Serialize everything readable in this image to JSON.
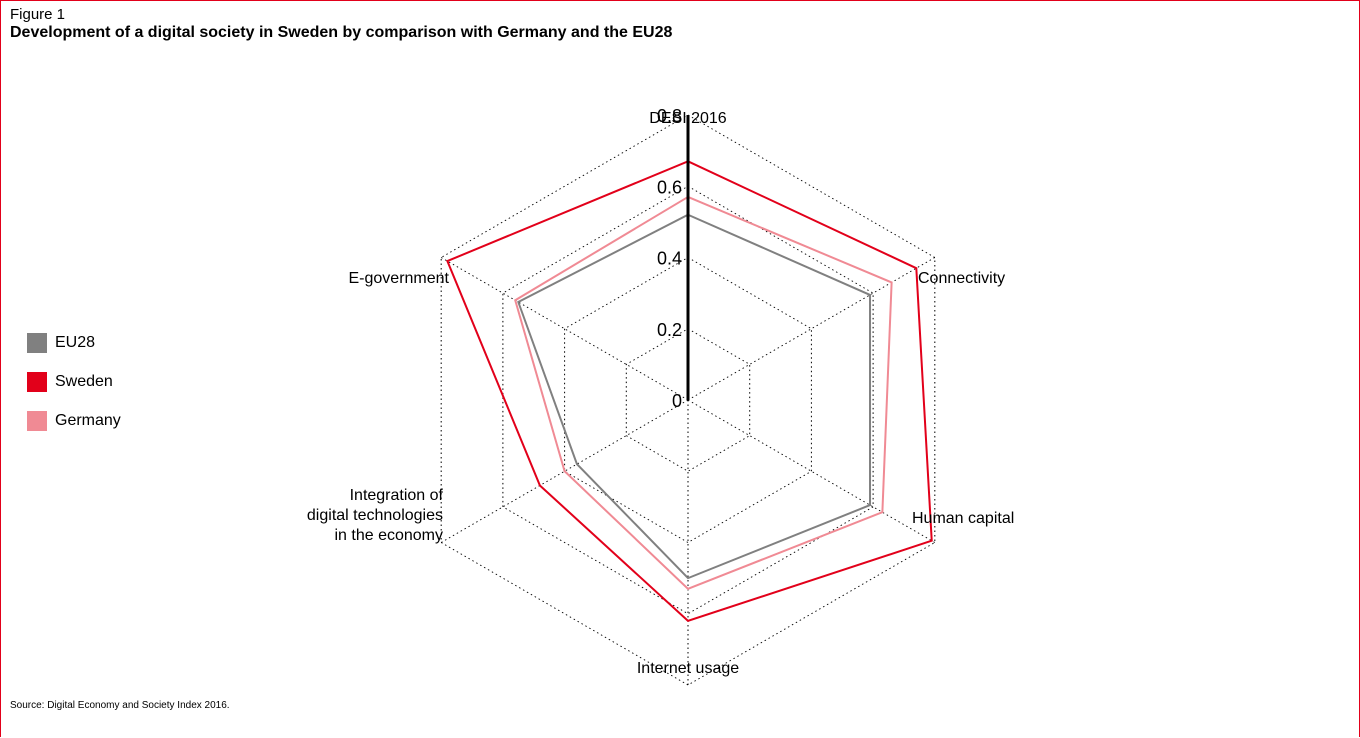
{
  "figure_label": "Figure 1",
  "title": "Development of a digital society in Sweden by comparison with Germany and the EU28",
  "source": "Source: Digital Economy and Society Index 2016.",
  "legend_position": "left",
  "chart_data": {
    "type": "radar",
    "title": "Development of a digital society in Sweden by comparison with Germany and the EU28",
    "subtitle": "DESI 2016",
    "categories": [
      "Connectivity",
      "Human capital",
      "Internet usage",
      "Integration of digital technologies in the economy",
      "E-government"
    ],
    "axis_label_lines": [
      [
        "Connectivity"
      ],
      [
        "Human capital"
      ],
      [
        "Internet usage"
      ],
      [
        "Integration of",
        "digital technologies",
        "in the economy"
      ],
      [
        "E-government"
      ]
    ],
    "overall_label": "DESI 2016",
    "ticks": [
      "0",
      "0.2",
      "0.4",
      "0.6",
      "0.8"
    ],
    "tick_values": [
      0,
      0.2,
      0.4,
      0.6,
      0.8
    ],
    "rlim": [
      0,
      0.8
    ],
    "grid": true,
    "series": [
      {
        "name": "EU28",
        "color": "#808080",
        "overall": 0.52,
        "values": [
          0.59,
          0.59,
          0.5,
          0.36,
          0.55
        ]
      },
      {
        "name": "Sweden",
        "color": "#e2001a",
        "overall": 0.67,
        "values": [
          0.74,
          0.79,
          0.62,
          0.48,
          0.78
        ]
      },
      {
        "name": "Germany",
        "color": "#f08a94",
        "overall": 0.57,
        "values": [
          0.66,
          0.63,
          0.53,
          0.4,
          0.56
        ]
      }
    ]
  }
}
